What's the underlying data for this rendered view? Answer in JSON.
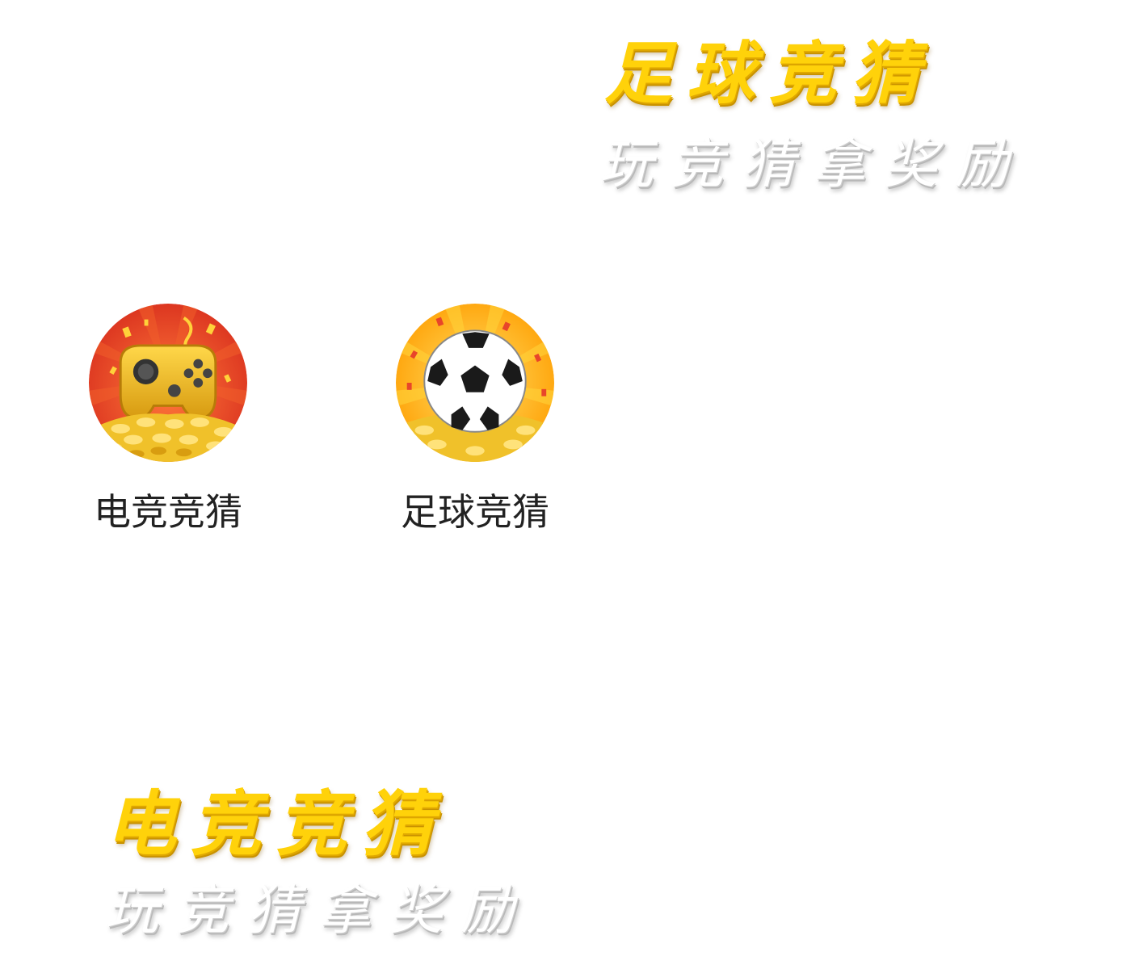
{
  "banners": {
    "football": {
      "title": "足球竞猜",
      "subtitle": "玩竞猜拿奖励"
    },
    "esports": {
      "title": "电竞竞猜",
      "subtitle": "玩竞猜拿奖励"
    }
  },
  "apps": [
    {
      "label": "电竞竞猜",
      "icon": "gamepad-icon"
    },
    {
      "label": "足球竞猜",
      "icon": "soccer-ball-icon"
    }
  ],
  "colors": {
    "title_gold": "#ffd20a",
    "esports_bg": "#e8452a",
    "football_bg": "#ffb000",
    "coins": "#f0c12a",
    "label_text": "#222222"
  }
}
